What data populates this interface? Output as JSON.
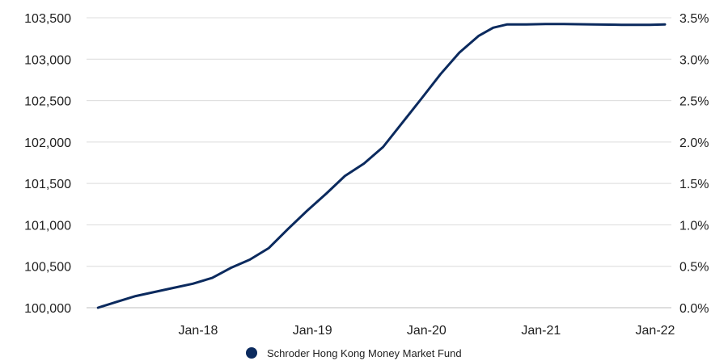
{
  "chart_data": {
    "type": "line",
    "title": "",
    "xlabel": "",
    "ylabel": "",
    "x_ticks": [
      "Jan-18",
      "Jan-19",
      "Jan-20",
      "Jan-21",
      "Jan-22"
    ],
    "y_ticks_left": [
      "100,000",
      "100,500",
      "101,000",
      "101,500",
      "102,000",
      "102,500",
      "103,000",
      "103,500"
    ],
    "y_ticks_right": [
      "0.0%",
      "0.5%",
      "1.0%",
      "1.5%",
      "2.0%",
      "2.5%",
      "3.0%",
      "3.5%"
    ],
    "ylim_left": [
      100000,
      103500
    ],
    "ylim_right": [
      0.0,
      3.5
    ],
    "grid": true,
    "legend_position": "bottom",
    "series": [
      {
        "name": "Schroder Hong Kong Money Market Fund",
        "color": "#0b2a5e",
        "axis": "left",
        "points": [
          [
            "2017-02-15",
            100000
          ],
          [
            "2017-04-15",
            100070
          ],
          [
            "2017-06-15",
            100140
          ],
          [
            "2017-08-15",
            100190
          ],
          [
            "2017-10-15",
            100240
          ],
          [
            "2017-12-15",
            100290
          ],
          [
            "2018-02-15",
            100360
          ],
          [
            "2018-04-15",
            100480
          ],
          [
            "2018-06-15",
            100580
          ],
          [
            "2018-08-15",
            100720
          ],
          [
            "2018-10-15",
            100950
          ],
          [
            "2018-12-15",
            101170
          ],
          [
            "2019-02-15",
            101380
          ],
          [
            "2019-04-15",
            101590
          ],
          [
            "2019-06-15",
            101740
          ],
          [
            "2019-08-15",
            101940
          ],
          [
            "2019-10-15",
            102230
          ],
          [
            "2019-12-15",
            102520
          ],
          [
            "2020-02-15",
            102820
          ],
          [
            "2020-04-15",
            103080
          ],
          [
            "2020-06-15",
            103280
          ],
          [
            "2020-08-01",
            103380
          ],
          [
            "2020-09-15",
            103420
          ],
          [
            "2020-11-15",
            103420
          ],
          [
            "2021-01-15",
            103425
          ],
          [
            "2021-03-15",
            103425
          ],
          [
            "2021-06-15",
            103420
          ],
          [
            "2021-09-15",
            103415
          ],
          [
            "2021-12-15",
            103415
          ],
          [
            "2022-02-01",
            103420
          ]
        ]
      }
    ]
  }
}
